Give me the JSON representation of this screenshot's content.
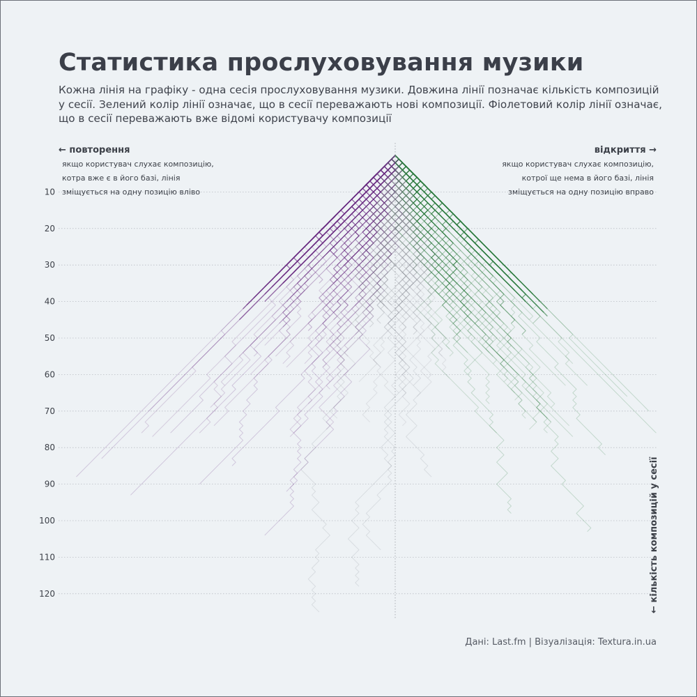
{
  "title": "Статистика прослуховування музики",
  "subtitle": "Кожна лінія на графіку - одна сесія прослуховування музики. Довжина лінії позначає кількість композицій у сесії. Зелений колір лінії означає, що в сесії переважають нові композиції. Фіолетовий колір лінії означає, що в сесії переважають вже відомі користувачу композиції",
  "left_annotation": {
    "title": "← повторення",
    "lines": [
      "якщо користувач слухає композицію,",
      "котра вже є в його базі, лінія",
      "зміщується на одну позицію вліво"
    ]
  },
  "right_annotation": {
    "title": "відкриття →",
    "lines": [
      "якщо користувач слухає композицію,",
      "котрої ще нема в його базі, лінія",
      "зміщується на одну позицію вправо"
    ]
  },
  "source": "Дані: Last.fm | Візуалізація: Textura.in.ua",
  "colors": {
    "repeat": "#6a2c82",
    "discovery": "#2a7a3c",
    "neutral": "#8f9299",
    "grid": "#b9bdc4",
    "background": "#eef2f5"
  },
  "chart_data": {
    "type": "line",
    "ylabel": "← кількість композицій у сесії",
    "y_ticks": [
      10,
      20,
      30,
      40,
      50,
      60,
      70,
      80,
      90,
      100,
      110,
      120
    ],
    "ylim": [
      0,
      126
    ],
    "xlim": [
      -76,
      76
    ],
    "grid": "horizontal dotted",
    "series_note": "random-walk sessions: each track moves the line one step left (repeat) or right (discovery)",
    "sessions": [
      {
        "length": 88,
        "net_position": -88
      },
      {
        "length": 83,
        "net_position": -81
      },
      {
        "length": 93,
        "net_position": -73
      },
      {
        "length": 90,
        "net_position": -55
      },
      {
        "length": 76,
        "net_position": -62
      },
      {
        "length": 70,
        "net_position": -68
      },
      {
        "length": 125,
        "net_position": -22
      },
      {
        "length": 118,
        "net_position": -10
      },
      {
        "length": 108,
        "net_position": -4
      },
      {
        "length": 104,
        "net_position": -36
      },
      {
        "length": 92,
        "net_position": -30
      },
      {
        "length": 85,
        "net_position": -46
      },
      {
        "length": 98,
        "net_position": 32
      },
      {
        "length": 103,
        "net_position": 52
      },
      {
        "length": 82,
        "net_position": 58
      },
      {
        "length": 76,
        "net_position": 72
      },
      {
        "length": 70,
        "net_position": 70
      },
      {
        "length": 66,
        "net_position": 64
      },
      {
        "length": 72,
        "net_position": 42
      },
      {
        "length": 88,
        "net_position": 10
      },
      {
        "length": 60,
        "net_position": 20
      },
      {
        "length": 55,
        "net_position": -40
      }
    ]
  }
}
